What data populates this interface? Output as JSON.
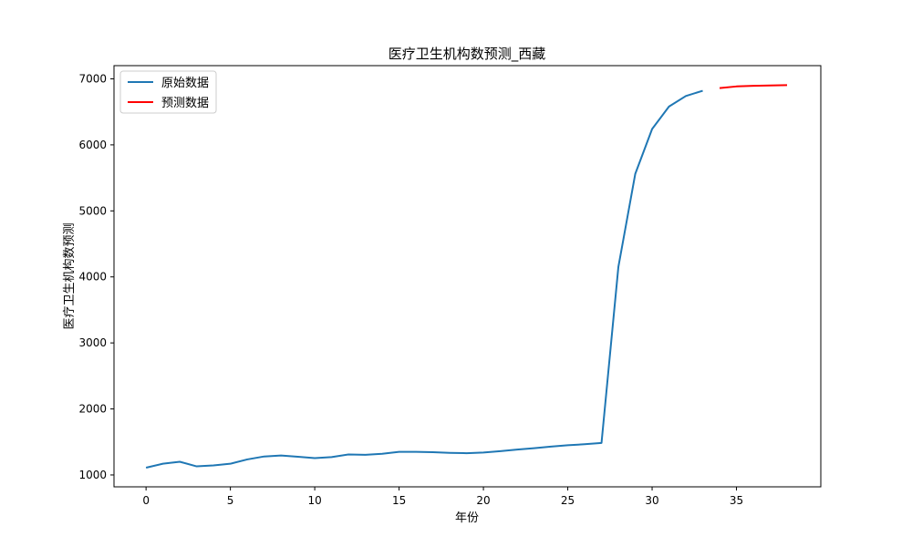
{
  "chart_data": {
    "type": "line",
    "title": "医疗卫生机构数预测_西藏",
    "xlabel": "年份",
    "ylabel": "医疗卫生机构数预测",
    "xlim": [
      -1.9,
      40
    ],
    "ylim": [
      820,
      7200
    ],
    "xticks": [
      0,
      5,
      10,
      15,
      20,
      25,
      30,
      35
    ],
    "yticks": [
      1000,
      2000,
      3000,
      4000,
      5000,
      6000,
      7000
    ],
    "grid": false,
    "legend_position": "top-left",
    "series": [
      {
        "name": "原始数据",
        "color": "#1f77b4",
        "x": [
          0,
          1,
          2,
          3,
          4,
          5,
          6,
          7,
          8,
          9,
          10,
          11,
          12,
          13,
          14,
          15,
          16,
          17,
          18,
          19,
          20,
          21,
          22,
          23,
          24,
          25,
          26,
          27,
          28,
          29,
          30,
          31,
          32,
          33
        ],
        "values": [
          1110,
          1170,
          1200,
          1130,
          1145,
          1170,
          1235,
          1280,
          1295,
          1275,
          1255,
          1270,
          1310,
          1305,
          1320,
          1350,
          1350,
          1345,
          1335,
          1330,
          1340,
          1360,
          1385,
          1405,
          1430,
          1450,
          1465,
          1485,
          4150,
          5560,
          6240,
          6580,
          6740,
          6820
        ]
      },
      {
        "name": "预测数据",
        "color": "#ff0000",
        "x": [
          34,
          35,
          36,
          37,
          38
        ],
        "values": [
          6860,
          6885,
          6895,
          6900,
          6905
        ]
      }
    ]
  }
}
